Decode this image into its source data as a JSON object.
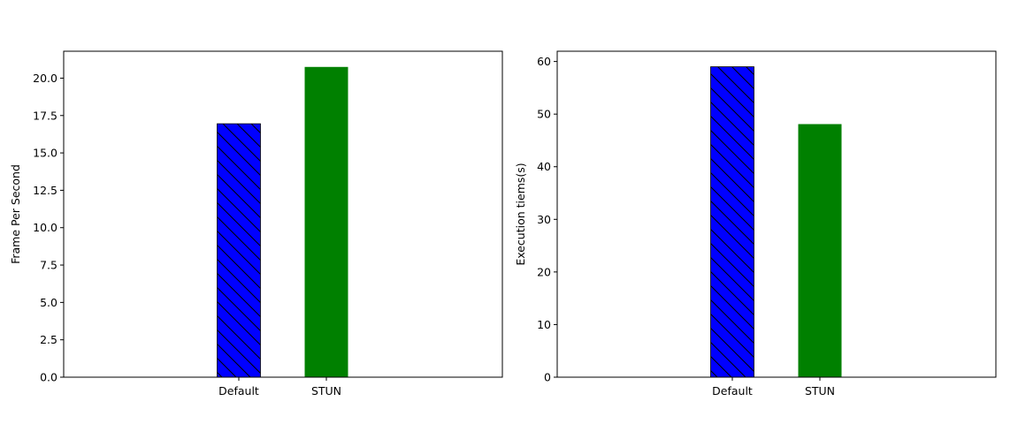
{
  "chart_data": [
    {
      "type": "bar",
      "categories": [
        "Default",
        "STUN"
      ],
      "values": [
        16.95,
        20.75
      ],
      "colors": [
        "#0000ff",
        "#008000"
      ],
      "hatch": [
        "diagonal",
        "none"
      ],
      "xlabel": "",
      "ylabel": "Frame Per Second",
      "ylim": [
        0,
        21.8
      ],
      "yticks": [
        "0.0",
        "2.5",
        "5.0",
        "7.5",
        "10.0",
        "12.5",
        "15.0",
        "17.5",
        "20.0"
      ],
      "grid": false
    },
    {
      "type": "bar",
      "categories": [
        "Default",
        "STUN"
      ],
      "values": [
        59.0,
        48.1
      ],
      "colors": [
        "#0000ff",
        "#008000"
      ],
      "hatch": [
        "diagonal",
        "none"
      ],
      "xlabel": "",
      "ylabel": "Execution tiems(s)",
      "ylim": [
        0,
        61.95
      ],
      "yticks": [
        "0",
        "10",
        "20",
        "30",
        "40",
        "50",
        "60"
      ],
      "grid": false
    }
  ]
}
